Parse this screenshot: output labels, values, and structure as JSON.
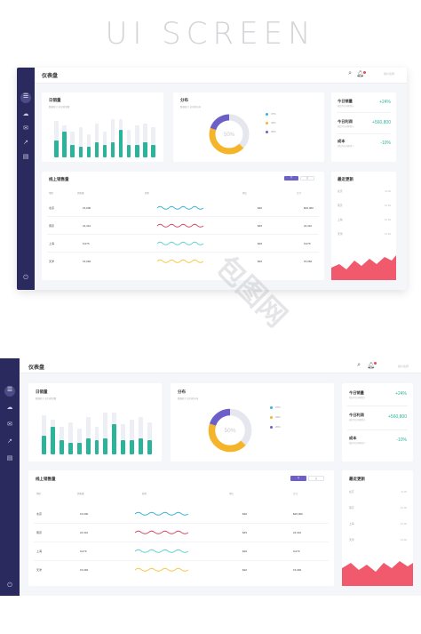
{
  "hero_title": "UI SCREEN",
  "watermark": "包图网",
  "colors": {
    "sidebar": "#2a2a5e",
    "accent_green": "#2bb49a",
    "donut_orange": "#f5b52a",
    "donut_purple": "#6c5fc7",
    "donut_bg": "#e6e6ef",
    "wave_blue": "#36b3d6",
    "wave_red": "#d04a63",
    "wave_teal": "#5fd0d0",
    "wave_yellow": "#f5c64a",
    "area_red": "#f05a6c",
    "segment_active": "#6c5fc7"
  },
  "dashboards": [
    {
      "sidebar_icons": [
        "menu-icon",
        "cloud-icon",
        "mail-icon",
        "trend-icon",
        "clipboard-icon"
      ],
      "power_icon": "power-icon",
      "topbar": {
        "title": "仪表盘",
        "user": "用户名称"
      },
      "daily_sales": {
        "title": "日销量",
        "subtitle": "数据统计 近日的销量"
      },
      "distribution": {
        "title": "分布",
        "subtitle": "数据统计 近日的分布",
        "center_label": "50%",
        "legend": [
          "37%",
          "43%",
          "20%"
        ]
      },
      "stats": [
        {
          "label": "今日销量",
          "sub": "相比昨日同期增长",
          "value": "+24%"
        },
        {
          "label": "今日利润",
          "sub": "相比昨日同期增长",
          "value": "+560,800"
        },
        {
          "label": "成本",
          "sub": "相比昨日同期减少",
          "value": "-10%"
        }
      ],
      "online": {
        "title": "线上销售量",
        "seg_on": "月",
        "seg_off": "周",
        "headers": [
          "地区",
          "销售量",
          "趋势",
          "环比",
          "合计"
        ],
        "rows": [
          {
            "region": "北京",
            "sales": "15,600",
            "ratio": "$30",
            "total": "$20,000"
          },
          {
            "region": "南京",
            "sales": "24,310",
            "ratio": "$45",
            "total": "24,310"
          },
          {
            "region": "上海",
            "sales": "9,076",
            "ratio": "$20",
            "total": "9,076"
          },
          {
            "region": "天津",
            "sales": "15,084",
            "ratio": "$20",
            "total": "15,084"
          }
        ]
      },
      "updates": {
        "title": "最近更新",
        "items": [
          {
            "label": "北京",
            "time": "11:00"
          },
          {
            "label": "南京",
            "time": "12:00"
          },
          {
            "label": "上海",
            "time": "12:00"
          },
          {
            "label": "天津",
            "time": "13:00"
          }
        ]
      }
    },
    {
      "sidebar_icons": [
        "menu-icon",
        "cloud-icon",
        "mail-icon",
        "trend-icon",
        "clipboard-icon"
      ],
      "power_icon": "power-icon",
      "topbar": {
        "title": "仪表盘",
        "user": "用户名称"
      },
      "daily_sales": {
        "title": "日销量",
        "subtitle": "数据统计 近日的销量"
      },
      "distribution": {
        "title": "分布",
        "subtitle": "数据统计 近日的分布",
        "center_label": "50%",
        "legend": [
          "37%",
          "43%",
          "20%"
        ]
      },
      "stats": [
        {
          "label": "今日销量",
          "sub": "相比昨日同期增长",
          "value": "+24%"
        },
        {
          "label": "今日利润",
          "sub": "相比昨日同期增长",
          "value": "+560,800"
        },
        {
          "label": "成本",
          "sub": "相比昨日同期减少",
          "value": "-10%"
        }
      ],
      "online": {
        "title": "线上销售量",
        "seg_on": "月",
        "seg_off": "周",
        "headers": [
          "地区",
          "销售量",
          "趋势",
          "环比",
          "合计"
        ],
        "rows": [
          {
            "region": "北京",
            "sales": "15,600",
            "ratio": "$30",
            "total": "$20,000"
          },
          {
            "region": "南京",
            "sales": "24,310",
            "ratio": "$45",
            "total": "24,310"
          },
          {
            "region": "上海",
            "sales": "9,076",
            "ratio": "$20",
            "total": "9,076"
          },
          {
            "region": "天津",
            "sales": "15,084",
            "ratio": "$20",
            "total": "15,084"
          }
        ]
      },
      "updates": {
        "title": "最近更新",
        "items": [
          {
            "label": "北京",
            "time": "11:00"
          },
          {
            "label": "南京",
            "time": "12:00"
          },
          {
            "label": "上海",
            "time": "12:00"
          },
          {
            "label": "天津",
            "time": "13:00"
          }
        ]
      }
    }
  ],
  "chart_data": [
    {
      "type": "bar",
      "series": [
        {
          "values": [
            0.4,
            0.6,
            0.3,
            0.25,
            0.25,
            0.35,
            0.3,
            0.35,
            0.65,
            0.3,
            0.3,
            0.35,
            0.3
          ]
        },
        {
          "values": [
            0.85,
            0.75,
            0.6,
            0.7,
            0.55,
            0.8,
            0.6,
            0.9,
            0.9,
            0.65,
            0.75,
            0.8,
            0.7
          ]
        }
      ]
    },
    {
      "type": "pie",
      "slices": [
        {
          "label": "37%",
          "value": 37
        },
        {
          "label": "43%",
          "value": 43
        },
        {
          "label": "20%",
          "value": 20
        }
      ]
    }
  ]
}
